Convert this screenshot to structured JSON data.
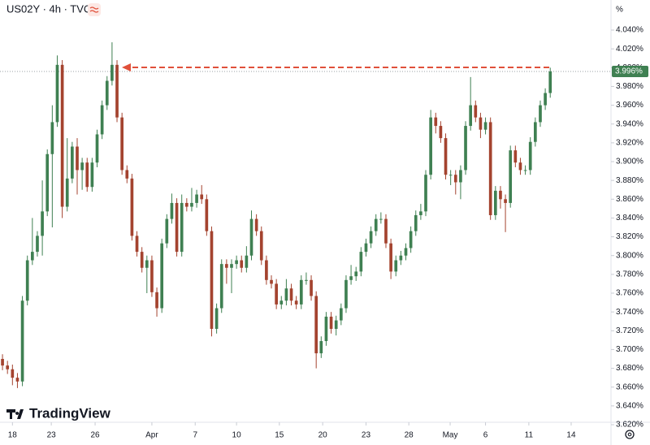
{
  "chart_data": {
    "type": "candlestick",
    "title": "US02Y · 4h · TVC",
    "y_axis_unit": "%",
    "brand": "TradingView",
    "up_color": "#3f8052",
    "down_color": "#a4432f",
    "xlim": [
      -0.5,
      122.2
    ],
    "xticks": [
      {
        "value": 2,
        "label": "18"
      },
      {
        "value": 9.8,
        "label": "23"
      },
      {
        "value": 18.6,
        "label": "26"
      },
      {
        "value": 30,
        "label": "Apr"
      },
      {
        "value": 38.7,
        "label": "7"
      },
      {
        "value": 47,
        "label": "10"
      },
      {
        "value": 55.6,
        "label": "15"
      },
      {
        "value": 64.3,
        "label": "20"
      },
      {
        "value": 73,
        "label": "23"
      },
      {
        "value": 81.6,
        "label": "28"
      },
      {
        "value": 89.9,
        "label": "May"
      },
      {
        "value": 97,
        "label": "6"
      },
      {
        "value": 105.7,
        "label": "11"
      },
      {
        "value": 114.2,
        "label": "14"
      }
    ],
    "ylim": [
      3.6226,
      4.072
    ],
    "yticks": [
      {
        "value": 3.62,
        "label": "3.620%"
      },
      {
        "value": 3.64,
        "label": "3.640%"
      },
      {
        "value": 3.66,
        "label": "3.660%"
      },
      {
        "value": 3.68,
        "label": "3.680%"
      },
      {
        "value": 3.7,
        "label": "3.700%"
      },
      {
        "value": 3.72,
        "label": "3.720%"
      },
      {
        "value": 3.74,
        "label": "3.740%"
      },
      {
        "value": 3.76,
        "label": "3.760%"
      },
      {
        "value": 3.78,
        "label": "3.780%"
      },
      {
        "value": 3.8,
        "label": "3.800%"
      },
      {
        "value": 3.82,
        "label": "3.820%"
      },
      {
        "value": 3.84,
        "label": "3.840%"
      },
      {
        "value": 3.86,
        "label": "3.860%"
      },
      {
        "value": 3.88,
        "label": "3.880%"
      },
      {
        "value": 3.9,
        "label": "3.900%"
      },
      {
        "value": 3.92,
        "label": "3.920%"
      },
      {
        "value": 3.94,
        "label": "3.940%"
      },
      {
        "value": 3.96,
        "label": "3.960%"
      },
      {
        "value": 3.98,
        "label": "3.980%"
      },
      {
        "value": 4.0,
        "label": "4.000%"
      },
      {
        "value": 4.02,
        "label": "4.020%"
      },
      {
        "value": 4.04,
        "label": "4.040%"
      }
    ],
    "last_price": {
      "value": 3.996,
      "label": "3.996%"
    },
    "ohlc": [
      [
        3.69,
        3.695,
        3.678,
        3.683
      ],
      [
        3.683,
        3.688,
        3.674,
        3.679
      ],
      [
        3.679,
        3.684,
        3.662,
        3.67
      ],
      [
        3.67,
        3.675,
        3.659,
        3.666
      ],
      [
        3.666,
        3.757,
        3.661,
        3.752
      ],
      [
        3.752,
        3.8,
        3.747,
        3.795
      ],
      [
        3.795,
        3.84,
        3.79,
        3.804
      ],
      [
        3.804,
        3.826,
        3.799,
        3.821
      ],
      [
        3.821,
        3.88,
        3.8,
        3.847
      ],
      [
        3.847,
        3.913,
        3.842,
        3.908
      ],
      [
        3.908,
        3.96,
        3.83,
        3.942
      ],
      [
        3.942,
        4.013,
        3.937,
        4.003
      ],
      [
        4.003,
        4.008,
        3.84,
        3.852
      ],
      [
        3.852,
        3.925,
        3.847,
        3.882
      ],
      [
        3.882,
        3.921,
        3.877,
        3.916
      ],
      [
        3.916,
        3.925,
        3.865,
        3.891
      ],
      [
        3.891,
        3.904,
        3.87,
        3.899
      ],
      [
        3.899,
        3.904,
        3.868,
        3.873
      ],
      [
        3.873,
        3.904,
        3.868,
        3.899
      ],
      [
        3.899,
        3.934,
        3.894,
        3.929
      ],
      [
        3.929,
        3.965,
        3.924,
        3.96
      ],
      [
        3.96,
        3.991,
        3.955,
        3.986
      ],
      [
        3.986,
        4.027,
        3.981,
        4.003
      ],
      [
        4.003,
        4.008,
        3.942,
        3.947
      ],
      [
        3.947,
        3.952,
        3.886,
        3.891
      ],
      [
        3.891,
        3.896,
        3.877,
        3.882
      ],
      [
        3.882,
        3.887,
        3.816,
        3.821
      ],
      [
        3.821,
        3.826,
        3.799,
        3.804
      ],
      [
        3.804,
        3.809,
        3.782,
        3.787
      ],
      [
        3.787,
        3.8,
        3.76,
        3.795
      ],
      [
        3.795,
        3.8,
        3.756,
        3.761
      ],
      [
        3.761,
        3.766,
        3.735,
        3.744
      ],
      [
        3.744,
        3.818,
        3.739,
        3.813
      ],
      [
        3.813,
        3.844,
        3.808,
        3.839
      ],
      [
        3.839,
        3.866,
        3.834,
        3.856
      ],
      [
        3.856,
        3.861,
        3.799,
        3.804
      ],
      [
        3.804,
        3.865,
        3.799,
        3.856
      ],
      [
        3.856,
        3.861,
        3.847,
        3.852
      ],
      [
        3.852,
        3.872,
        3.847,
        3.856
      ],
      [
        3.856,
        3.87,
        3.851,
        3.865
      ],
      [
        3.865,
        3.875,
        3.855,
        3.86
      ],
      [
        3.86,
        3.865,
        3.821,
        3.826
      ],
      [
        3.826,
        3.831,
        3.714,
        3.722
      ],
      [
        3.722,
        3.749,
        3.717,
        3.744
      ],
      [
        3.744,
        3.796,
        3.739,
        3.791
      ],
      [
        3.791,
        3.796,
        3.77,
        3.787
      ],
      [
        3.787,
        3.796,
        3.76,
        3.791
      ],
      [
        3.791,
        3.8,
        3.786,
        3.795
      ],
      [
        3.795,
        3.8,
        3.782,
        3.787
      ],
      [
        3.787,
        3.81,
        3.782,
        3.8
      ],
      [
        3.8,
        3.848,
        3.795,
        3.839
      ],
      [
        3.839,
        3.844,
        3.821,
        3.826
      ],
      [
        3.826,
        3.831,
        3.79,
        3.795
      ],
      [
        3.795,
        3.8,
        3.769,
        3.774
      ],
      [
        3.774,
        3.779,
        3.765,
        3.77
      ],
      [
        3.77,
        3.775,
        3.743,
        3.748
      ],
      [
        3.748,
        3.757,
        3.743,
        3.752
      ],
      [
        3.752,
        3.775,
        3.747,
        3.765
      ],
      [
        3.765,
        3.77,
        3.747,
        3.752
      ],
      [
        3.752,
        3.757,
        3.743,
        3.748
      ],
      [
        3.748,
        3.779,
        3.743,
        3.774
      ],
      [
        3.774,
        3.782,
        3.769,
        3.774
      ],
      [
        3.774,
        3.779,
        3.752,
        3.757
      ],
      [
        3.757,
        3.762,
        3.68,
        3.696
      ],
      [
        3.696,
        3.714,
        3.691,
        3.709
      ],
      [
        3.709,
        3.74,
        3.704,
        3.735
      ],
      [
        3.735,
        3.74,
        3.717,
        3.722
      ],
      [
        3.722,
        3.736,
        3.715,
        3.731
      ],
      [
        3.731,
        3.749,
        3.726,
        3.744
      ],
      [
        3.744,
        3.779,
        3.739,
        3.774
      ],
      [
        3.774,
        3.79,
        3.769,
        3.778
      ],
      [
        3.778,
        3.788,
        3.773,
        3.783
      ],
      [
        3.783,
        3.809,
        3.778,
        3.804
      ],
      [
        3.804,
        3.818,
        3.799,
        3.813
      ],
      [
        3.813,
        3.831,
        3.808,
        3.826
      ],
      [
        3.826,
        3.844,
        3.821,
        3.839
      ],
      [
        3.839,
        3.846,
        3.834,
        3.839
      ],
      [
        3.839,
        3.844,
        3.808,
        3.813
      ],
      [
        3.813,
        3.818,
        3.775,
        3.783
      ],
      [
        3.783,
        3.8,
        3.778,
        3.795
      ],
      [
        3.795,
        3.805,
        3.79,
        3.8
      ],
      [
        3.8,
        3.813,
        3.795,
        3.808
      ],
      [
        3.808,
        3.831,
        3.803,
        3.826
      ],
      [
        3.826,
        3.848,
        3.821,
        3.843
      ],
      [
        3.843,
        3.855,
        3.838,
        3.847
      ],
      [
        3.847,
        3.891,
        3.842,
        3.886
      ],
      [
        3.886,
        3.955,
        3.881,
        3.947
      ],
      [
        3.947,
        3.952,
        3.93,
        3.938
      ],
      [
        3.938,
        3.943,
        3.92,
        3.925
      ],
      [
        3.925,
        3.93,
        3.881,
        3.886
      ],
      [
        3.886,
        3.891,
        3.875,
        3.886
      ],
      [
        3.886,
        3.891,
        3.865,
        3.878
      ],
      [
        3.878,
        3.896,
        3.86,
        3.891
      ],
      [
        3.891,
        3.943,
        3.886,
        3.938
      ],
      [
        3.938,
        3.99,
        3.933,
        3.96
      ],
      [
        3.96,
        3.965,
        3.942,
        3.947
      ],
      [
        3.947,
        3.952,
        3.925,
        3.934
      ],
      [
        3.934,
        3.947,
        3.929,
        3.942
      ],
      [
        3.942,
        3.947,
        3.838,
        3.843
      ],
      [
        3.843,
        3.874,
        3.838,
        3.869
      ],
      [
        3.869,
        3.874,
        3.85,
        3.86
      ],
      [
        3.86,
        3.865,
        3.825,
        3.856
      ],
      [
        3.856,
        3.917,
        3.851,
        3.912
      ],
      [
        3.912,
        3.917,
        3.894,
        3.899
      ],
      [
        3.899,
        3.904,
        3.886,
        3.891
      ],
      [
        3.891,
        3.896,
        3.886,
        3.891
      ],
      [
        3.891,
        3.926,
        3.886,
        3.921
      ],
      [
        3.921,
        3.947,
        3.916,
        3.942
      ],
      [
        3.942,
        3.965,
        3.937,
        3.96
      ],
      [
        3.96,
        3.978,
        3.955,
        3.973
      ],
      [
        3.973,
        4.0,
        3.968,
        3.996
      ]
    ]
  }
}
